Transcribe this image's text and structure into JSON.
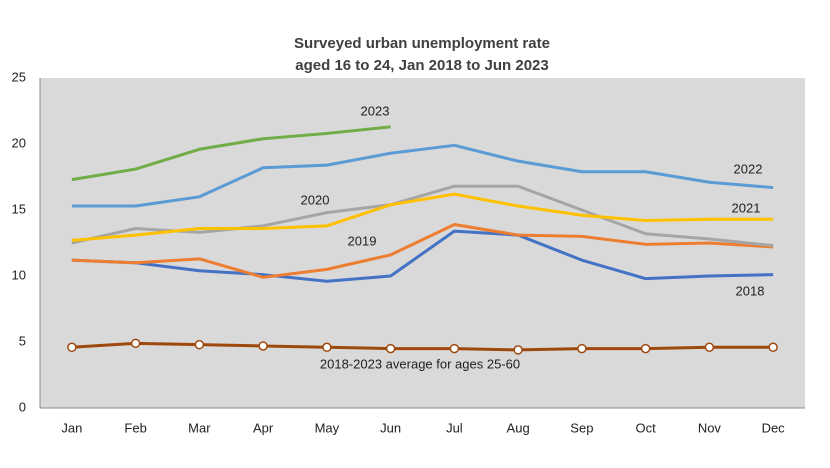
{
  "chart_data": {
    "type": "line",
    "title": [
      "Surveyed urban unemployment rate",
      "aged 16 to 24, Jan 2018 to Jun 2023"
    ],
    "categories": [
      "Jan",
      "Feb",
      "Mar",
      "Apr",
      "May",
      "Jun",
      "Jul",
      "Aug",
      "Sep",
      "Oct",
      "Nov",
      "Dec"
    ],
    "ylim": [
      0,
      25
    ],
    "yticks": [
      0,
      5,
      10,
      15,
      20,
      25
    ],
    "grid": false,
    "series": [
      {
        "name": "2018",
        "color": "#4472c4",
        "values": [
          11.2,
          11.0,
          10.4,
          10.1,
          9.6,
          10.0,
          13.4,
          13.1,
          11.2,
          9.8,
          10.0,
          10.1
        ]
      },
      {
        "name": "2019",
        "color": "#ed7d31",
        "values": [
          11.2,
          11.0,
          11.3,
          9.9,
          10.5,
          11.6,
          13.9,
          13.1,
          13.0,
          12.4,
          12.5,
          12.2
        ]
      },
      {
        "name": "2020",
        "color": "#a5a5a5",
        "values": [
          12.5,
          13.6,
          13.3,
          13.8,
          14.8,
          15.4,
          16.8,
          16.8,
          15.0,
          13.2,
          12.8,
          12.3
        ]
      },
      {
        "name": "2021",
        "color": "#ffc000",
        "values": [
          12.7,
          13.1,
          13.6,
          13.6,
          13.8,
          15.4,
          16.2,
          15.3,
          14.6,
          14.2,
          14.3,
          14.3
        ]
      },
      {
        "name": "2022",
        "color": "#5b9bd5",
        "values": [
          15.3,
          15.3,
          16.0,
          18.2,
          18.4,
          19.3,
          19.9,
          18.7,
          17.9,
          17.9,
          17.1,
          16.7
        ]
      },
      {
        "name": "2023",
        "color": "#70ad47",
        "values": [
          17.3,
          18.1,
          19.6,
          20.4,
          20.8,
          21.3,
          null,
          null,
          null,
          null,
          null,
          null
        ]
      },
      {
        "name": "2018-2023 average for ages 25-60",
        "color": "#9e480e",
        "markers": true,
        "values": [
          4.6,
          4.9,
          4.8,
          4.7,
          4.6,
          4.5,
          4.5,
          4.4,
          4.5,
          4.5,
          4.6,
          4.6
        ]
      }
    ]
  }
}
